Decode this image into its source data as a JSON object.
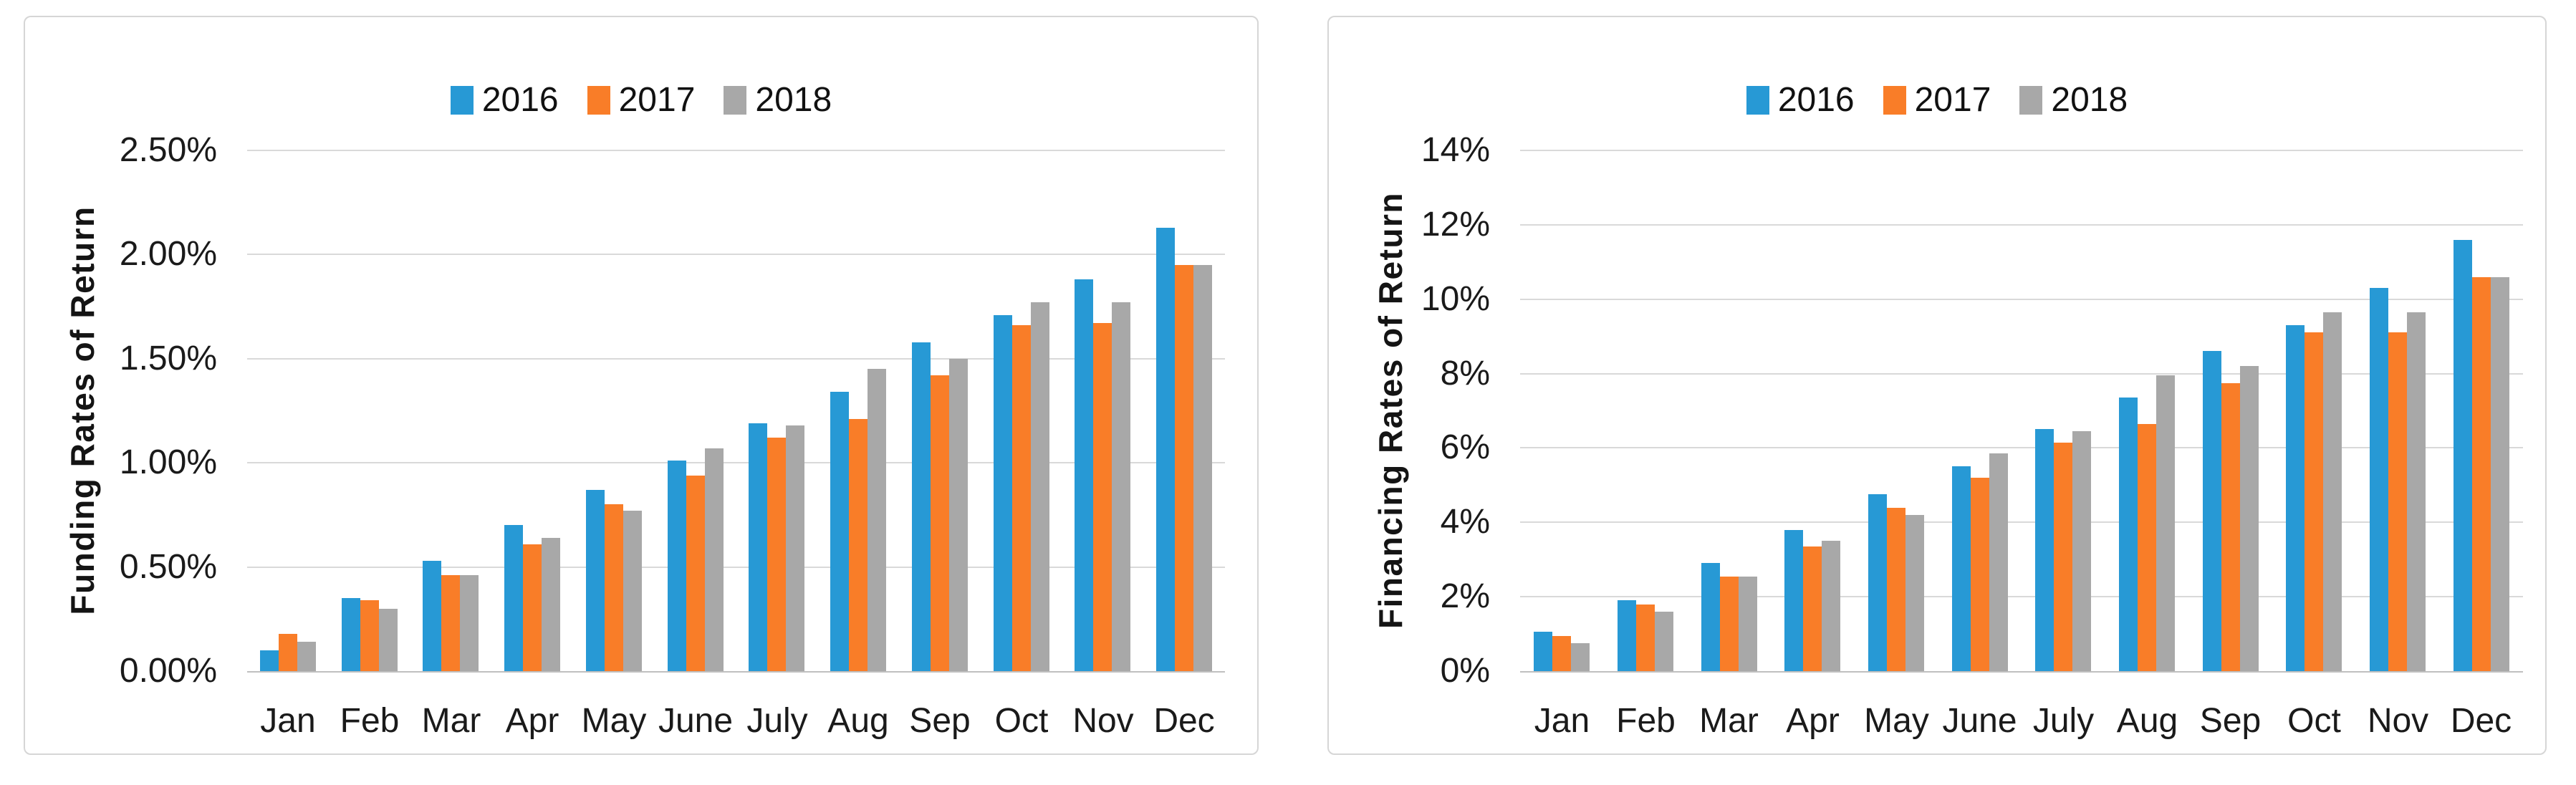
{
  "palette": {
    "series_2016": "#2799d5",
    "series_2017": "#f97d28",
    "series_2018": "#a8a8a8",
    "gridline": "#d9d9d9",
    "axis_line": "#bfbfbf",
    "panel_border": "#d6d6d6",
    "text": "#1a1a1a"
  },
  "chart_data": [
    {
      "type": "bar",
      "title": "",
      "xlabel": "",
      "ylabel": "Funding Rates of Return",
      "categories": [
        "Jan",
        "Feb",
        "Mar",
        "Apr",
        "May",
        "June",
        "July",
        "Aug",
        "Sep",
        "Oct",
        "Nov",
        "Dec"
      ],
      "y_ticks": [
        "0.00%",
        "0.50%",
        "1.00%",
        "1.50%",
        "2.00%",
        "2.50%"
      ],
      "ylim": [
        0,
        2.5
      ],
      "y_step": 0.5,
      "grid": true,
      "legend_position": "top-center",
      "legend": [
        "2016",
        "2017",
        "2018"
      ],
      "series": [
        {
          "name": "2016",
          "color": "#2799d5",
          "values": [
            0.1,
            0.35,
            0.53,
            0.7,
            0.87,
            1.01,
            1.19,
            1.34,
            1.58,
            1.71,
            1.88,
            2.13
          ]
        },
        {
          "name": "2017",
          "color": "#f97d28",
          "values": [
            0.18,
            0.34,
            0.46,
            0.61,
            0.8,
            0.94,
            1.12,
            1.21,
            1.42,
            1.66,
            1.67,
            1.95
          ]
        },
        {
          "name": "2018",
          "color": "#a8a8a8",
          "values": [
            0.14,
            0.3,
            0.46,
            0.64,
            0.77,
            1.07,
            1.18,
            1.45,
            1.5,
            1.77,
            1.77,
            1.95
          ]
        }
      ]
    },
    {
      "type": "bar",
      "title": "",
      "xlabel": "",
      "ylabel": "Financing Rates of Return",
      "categories": [
        "Jan",
        "Feb",
        "Mar",
        "Apr",
        "May",
        "June",
        "July",
        "Aug",
        "Sep",
        "Oct",
        "Nov",
        "Dec"
      ],
      "y_ticks": [
        "0%",
        "2%",
        "4%",
        "6%",
        "8%",
        "10%",
        "12%",
        "14%"
      ],
      "ylim": [
        0,
        14
      ],
      "y_step": 2,
      "grid": true,
      "legend_position": "top-center",
      "legend": [
        "2016",
        "2017",
        "2018"
      ],
      "series": [
        {
          "name": "2016",
          "color": "#2799d5",
          "values": [
            1.05,
            1.9,
            2.9,
            3.8,
            4.75,
            5.5,
            6.5,
            7.35,
            8.6,
            9.3,
            10.3,
            11.6
          ]
        },
        {
          "name": "2017",
          "color": "#f97d28",
          "values": [
            0.95,
            1.8,
            2.55,
            3.35,
            4.4,
            5.2,
            6.15,
            6.65,
            7.75,
            9.1,
            9.1,
            10.6
          ]
        },
        {
          "name": "2018",
          "color": "#a8a8a8",
          "values": [
            0.75,
            1.6,
            2.55,
            3.5,
            4.2,
            5.85,
            6.45,
            7.95,
            8.2,
            9.65,
            9.65,
            10.6
          ]
        }
      ]
    }
  ]
}
